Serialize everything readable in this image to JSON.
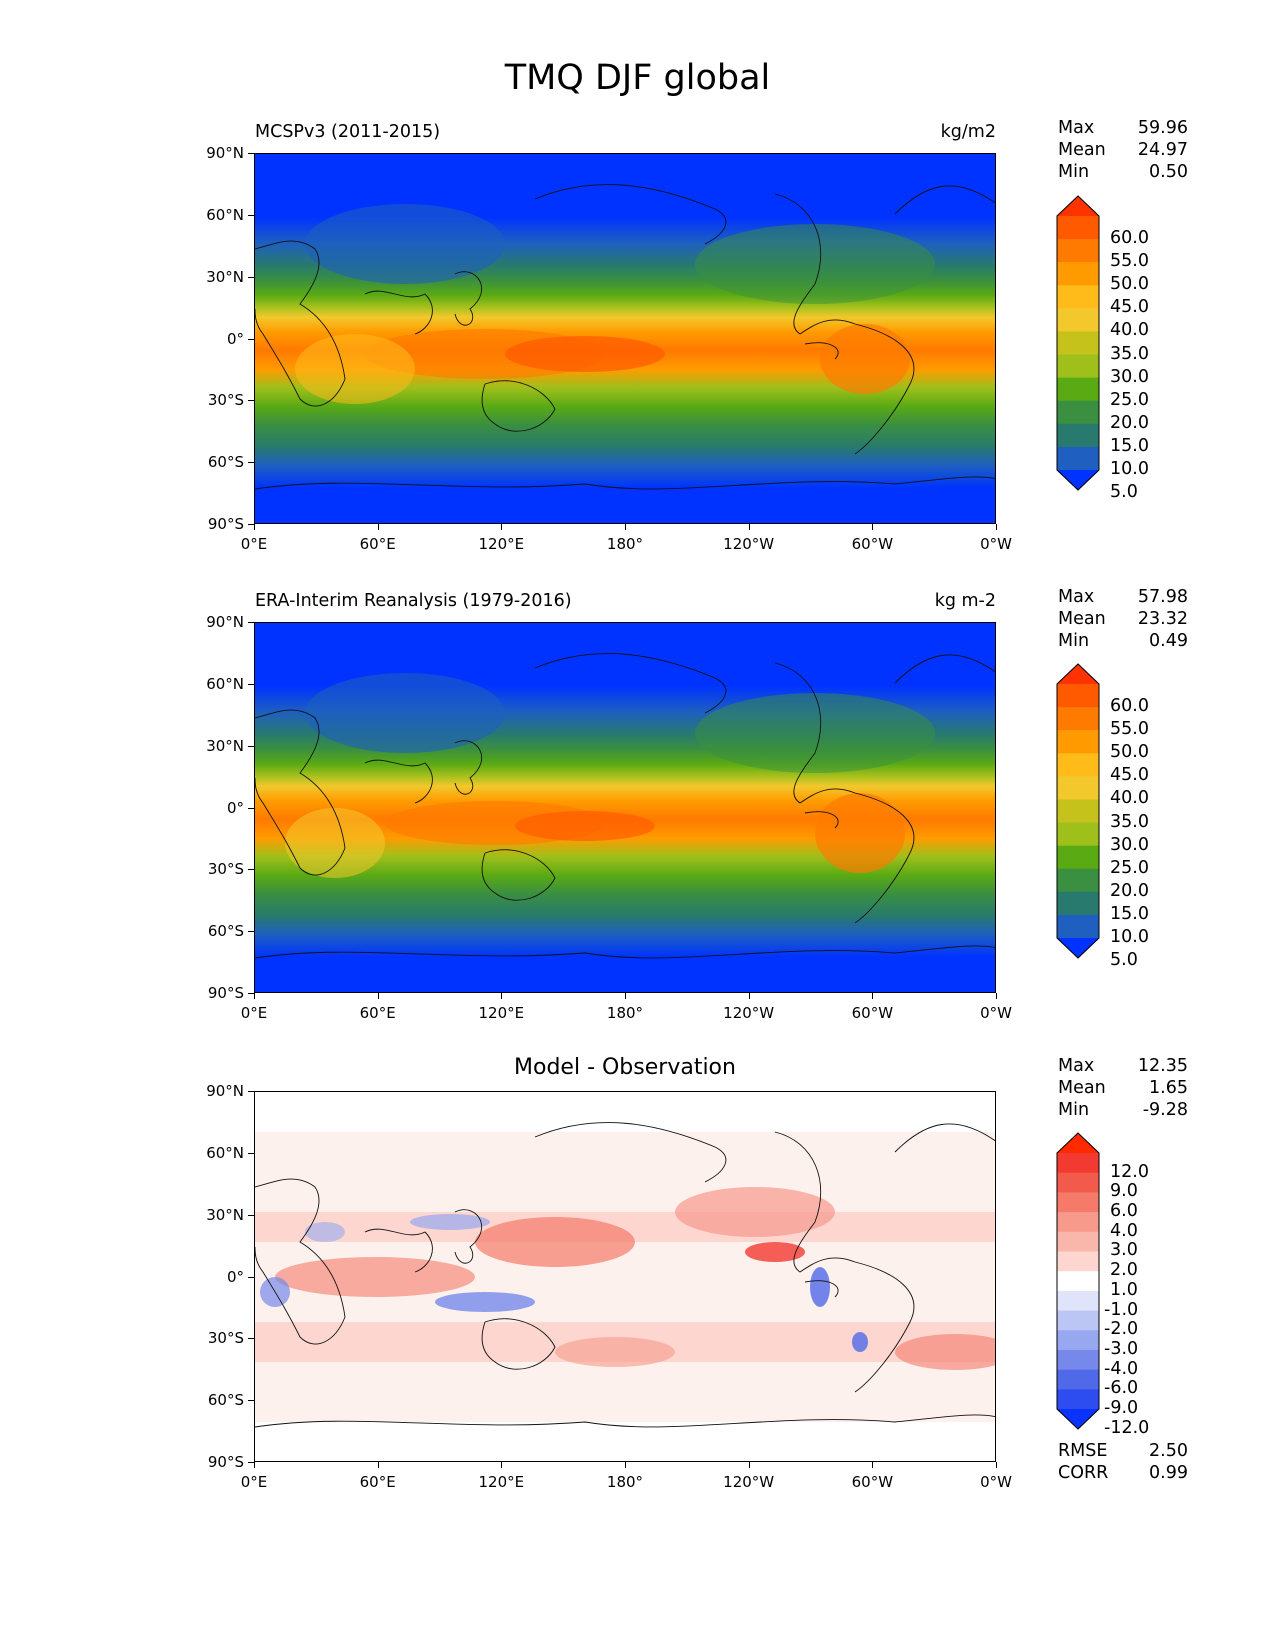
{
  "title": "TMQ DJF global",
  "lat_ticks": [
    "90°N",
    "60°N",
    "30°N",
    "0°",
    "30°S",
    "60°S",
    "90°S"
  ],
  "lon_ticks": [
    "0°E",
    "60°E",
    "120°E",
    "180°",
    "120°W",
    "60°W",
    "0°W"
  ],
  "panels": [
    {
      "left_title": "MCSPv3 (2011-2015)",
      "right_title": "kg/m2",
      "center_title": "",
      "stats": {
        "max_label": "Max",
        "max": "59.96",
        "mean_label": "Mean",
        "mean": "24.97",
        "min_label": "Min",
        "min": "0.50"
      },
      "colorbar_levels": [
        "60.0",
        "55.0",
        "50.0",
        "45.0",
        "40.0",
        "35.0",
        "30.0",
        "25.0",
        "20.0",
        "15.0",
        "10.0",
        "5.0"
      ],
      "colorbar_colors": [
        "#ff3300",
        "#ff5a00",
        "#ff7a00",
        "#ff9b00",
        "#ffbb1a",
        "#f2c82c",
        "#c6c21c",
        "#9fbf1b",
        "#5aaa14",
        "#3a8f40",
        "#287a6e",
        "#1e5fc0",
        "#0033ff"
      ]
    },
    {
      "left_title": "ERA-Interim Reanalysis (1979-2016)",
      "right_title": "kg m-2",
      "center_title": "",
      "stats": {
        "max_label": "Max",
        "max": "57.98",
        "mean_label": "Mean",
        "mean": "23.32",
        "min_label": "Min",
        "min": "0.49"
      },
      "colorbar_levels": [
        "60.0",
        "55.0",
        "50.0",
        "45.0",
        "40.0",
        "35.0",
        "30.0",
        "25.0",
        "20.0",
        "15.0",
        "10.0",
        "5.0"
      ],
      "colorbar_colors": [
        "#ff3300",
        "#ff5a00",
        "#ff7a00",
        "#ff9b00",
        "#ffbb1a",
        "#f2c82c",
        "#c6c21c",
        "#9fbf1b",
        "#5aaa14",
        "#3a8f40",
        "#287a6e",
        "#1e5fc0",
        "#0033ff"
      ]
    },
    {
      "left_title": "",
      "right_title": "",
      "center_title": "Model - Observation",
      "stats": {
        "max_label": "Max",
        "max": "12.35",
        "mean_label": "Mean",
        "mean": "1.65",
        "min_label": "Min",
        "min": "-9.28"
      },
      "colorbar_levels": [
        "12.0",
        "9.0",
        "6.0",
        "4.0",
        "3.0",
        "2.0",
        "1.0",
        "-1.0",
        "-2.0",
        "-3.0",
        "-4.0",
        "-6.0",
        "-9.0",
        "-12.0"
      ],
      "colorbar_colors": [
        "#ff2a00",
        "#f23a30",
        "#f25a4c",
        "#f57a6a",
        "#f7998b",
        "#f9b7ab",
        "#fcd6cf",
        "#ffffff",
        "#dfe4fa",
        "#bcc6f5",
        "#98a8f0",
        "#7689ea",
        "#4f69e8",
        "#2e4df0",
        "#0a33ff"
      ],
      "rmse_label": "RMSE",
      "rmse": "2.50",
      "corr_label": "CORR",
      "corr": "0.99"
    }
  ]
}
